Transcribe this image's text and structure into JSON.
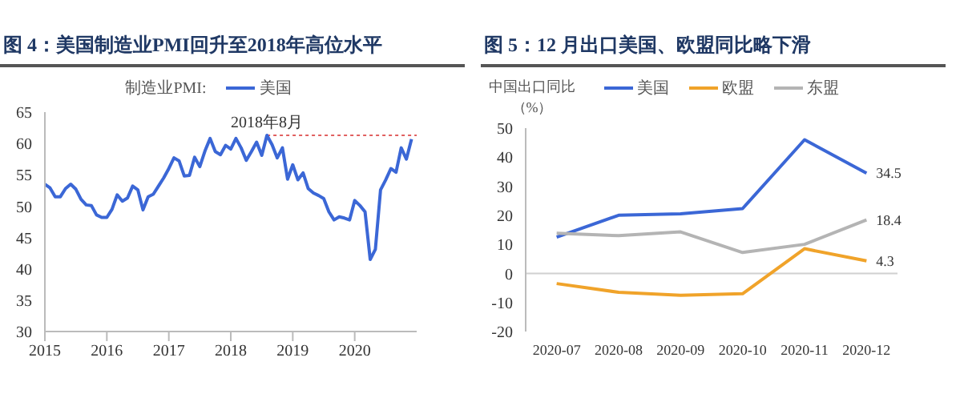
{
  "chart_data": [
    {
      "type": "line",
      "title": "图 4：美国制造业PMI回升至2018年高位水平",
      "legend_title": "制造业PMI:",
      "legend": "top",
      "marker": "none",
      "x": [
        "2015-01",
        "2015-02",
        "2015-03",
        "2015-04",
        "2015-05",
        "2015-06",
        "2015-07",
        "2015-08",
        "2015-09",
        "2015-10",
        "2015-11",
        "2015-12",
        "2016-01",
        "2016-02",
        "2016-03",
        "2016-04",
        "2016-05",
        "2016-06",
        "2016-07",
        "2016-08",
        "2016-09",
        "2016-10",
        "2016-11",
        "2016-12",
        "2017-01",
        "2017-02",
        "2017-03",
        "2017-04",
        "2017-05",
        "2017-06",
        "2017-07",
        "2017-08",
        "2017-09",
        "2017-10",
        "2017-11",
        "2017-12",
        "2018-01",
        "2018-02",
        "2018-03",
        "2018-04",
        "2018-05",
        "2018-06",
        "2018-07",
        "2018-08",
        "2018-09",
        "2018-10",
        "2018-11",
        "2018-12",
        "2019-01",
        "2019-02",
        "2019-03",
        "2019-04",
        "2019-05",
        "2019-06",
        "2019-07",
        "2019-08",
        "2019-09",
        "2019-10",
        "2019-11",
        "2019-12",
        "2020-01",
        "2020-02",
        "2020-03",
        "2020-04",
        "2020-05",
        "2020-06",
        "2020-07",
        "2020-08",
        "2020-09",
        "2020-10",
        "2020-11",
        "2020-12"
      ],
      "series": [
        {
          "name": "美国",
          "color": "#3b67d6",
          "values": [
            53.5,
            52.9,
            51.5,
            51.5,
            52.8,
            53.5,
            52.7,
            51.1,
            50.2,
            50.1,
            48.6,
            48.2,
            48.2,
            49.5,
            51.8,
            50.8,
            51.3,
            53.2,
            52.6,
            49.4,
            51.5,
            51.9,
            53.2,
            54.5,
            56.0,
            57.7,
            57.2,
            54.8,
            54.9,
            57.8,
            56.3,
            58.8,
            60.8,
            58.7,
            58.2,
            59.7,
            59.1,
            60.8,
            59.3,
            57.3,
            58.7,
            60.2,
            58.1,
            61.3,
            59.8,
            57.7,
            59.3,
            54.3,
            56.6,
            54.2,
            55.3,
            52.8,
            52.1,
            51.7,
            51.2,
            49.1,
            47.8,
            48.3,
            48.1,
            47.8,
            50.9,
            50.1,
            49.1,
            41.5,
            43.1,
            52.6,
            54.2,
            56.0,
            55.4,
            59.3,
            57.5,
            60.7
          ]
        }
      ],
      "xlim": [
        "2015",
        "2021"
      ],
      "xticks": [
        "2015",
        "2016",
        "2017",
        "2018",
        "2019",
        "2020"
      ],
      "ylim": [
        30,
        65
      ],
      "yticks": [
        30,
        35,
        40,
        45,
        50,
        55,
        60,
        65
      ],
      "ref_lines": [
        {
          "axis": "y",
          "value": 61.3,
          "color": "#e06060",
          "line_style": "dotted"
        }
      ],
      "annotations": [
        {
          "text": "2018年8月",
          "x": "2018-08",
          "y": 61.3
        }
      ]
    },
    {
      "type": "line",
      "title": "图 5：12 月出口美国、欧盟同比略下滑",
      "ylabel": "中国出口同比（%）",
      "legend": "top",
      "marker": "none",
      "categories": [
        "2020-07",
        "2020-08",
        "2020-09",
        "2020-10",
        "2020-11",
        "2020-12"
      ],
      "series": [
        {
          "name": "美国",
          "color": "#3b67d6",
          "values": [
            12.5,
            20,
            20.5,
            22.3,
            46,
            34.5
          ],
          "value_labels": [
            null,
            null,
            null,
            null,
            null,
            "34.5"
          ]
        },
        {
          "name": "欧盟",
          "color": "#f0a32a",
          "values": [
            -3.5,
            -6.5,
            -7.5,
            -7,
            8.5,
            4.3
          ],
          "value_labels": [
            null,
            null,
            null,
            null,
            null,
            "4.3"
          ]
        },
        {
          "name": "东盟",
          "color": "#b4b4b4",
          "values": [
            13.8,
            13,
            14.3,
            7.2,
            10,
            18.4
          ],
          "value_labels": [
            null,
            null,
            null,
            null,
            null,
            "18.4"
          ]
        }
      ],
      "ylim": [
        -20,
        50
      ],
      "yticks": [
        -20,
        -10,
        0,
        10,
        20,
        30,
        40,
        50
      ],
      "ref_lines": [
        {
          "axis": "y",
          "value": 0,
          "color": "#d0d0d0",
          "line_style": "solid"
        }
      ]
    }
  ]
}
